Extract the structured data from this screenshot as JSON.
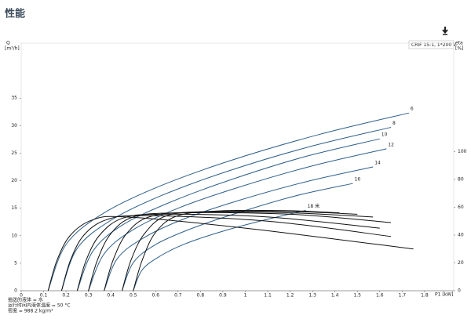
{
  "chart_data": {
    "type": "line",
    "title": "性能",
    "box_label": "CRIF 15-1, 1*200 V",
    "ylabel": [
      "Q",
      "[m³/h]"
    ],
    "y2label": [
      "eta",
      "[%]"
    ],
    "xlabel": "P1 [kW]",
    "notes": [
      "抽送的液体 = 水",
      "运行时间内液体温度 = 50 °C",
      "密度 = 988.2 kg/m³"
    ],
    "xlim": [
      0,
      1.93
    ],
    "xticks": [
      0,
      0.1,
      0.2,
      0.3,
      0.4,
      0.5,
      0.6,
      0.7,
      0.8,
      0.9,
      1,
      1.1,
      1.2,
      1.3,
      1.4,
      1.5,
      1.6,
      1.7,
      1.8
    ],
    "ylim": [
      0,
      45
    ],
    "yticks": [
      0,
      5,
      10,
      15,
      20,
      25,
      30,
      35
    ],
    "y2lim": [
      0,
      178
    ],
    "y2ticks": [
      0,
      20,
      40,
      60,
      80,
      100
    ],
    "series": [
      {
        "name": "6",
        "color": "#2e5f8a",
        "x": [
          0.12,
          0.2,
          0.36,
          0.6,
          0.93,
          1.33,
          1.73
        ],
        "values": [
          0,
          8.4,
          13.9,
          18.7,
          23.6,
          28.4,
          32.3
        ]
      },
      {
        "name": "8",
        "color": "#2e5f8a",
        "x": [
          0.18,
          0.25,
          0.4,
          0.62,
          0.92,
          1.28,
          1.65
        ],
        "values": [
          0,
          7.7,
          12.8,
          17.2,
          21.7,
          26.1,
          29.7
        ]
      },
      {
        "name": "10",
        "color": "#2e5f8a",
        "x": [
          0.25,
          0.32,
          0.45,
          0.66,
          0.93,
          1.26,
          1.6
        ],
        "values": [
          0,
          7.2,
          11.9,
          16.0,
          20.1,
          24.3,
          27.6
        ]
      },
      {
        "name": "12",
        "color": "#2e5f8a",
        "x": [
          0.3,
          0.37,
          0.5,
          0.7,
          0.97,
          1.3,
          1.63
        ],
        "values": [
          0,
          6.7,
          11.1,
          15.0,
          18.8,
          22.7,
          25.8
        ]
      },
      {
        "name": "14",
        "color": "#2e5f8a",
        "x": [
          0.37,
          0.43,
          0.55,
          0.73,
          0.97,
          1.27,
          1.57
        ],
        "values": [
          0,
          5.9,
          9.7,
          13.1,
          16.4,
          19.8,
          22.5
        ]
      },
      {
        "name": "16",
        "color": "#2e5f8a",
        "x": [
          0.45,
          0.5,
          0.6,
          0.76,
          0.97,
          1.22,
          1.48
        ],
        "values": [
          0,
          5.1,
          8.4,
          11.3,
          14.2,
          17.2,
          19.5
        ]
      },
      {
        "name": "18 米",
        "color": "#2e5f8a",
        "x": [
          0.5,
          0.54,
          0.62,
          0.73,
          0.89,
          1.08,
          1.27
        ],
        "values": [
          0,
          3.8,
          6.3,
          8.5,
          10.7,
          12.8,
          14.6
        ]
      },
      {
        "color": "#111111",
        "axis": "y2",
        "x": [
          0.12,
          0.16,
          0.22,
          0.32,
          0.47,
          1.0,
          1.75
        ],
        "values": [
          0,
          22,
          40,
          51,
          53,
          45,
          30
        ]
      },
      {
        "color": "#111111",
        "axis": "y2",
        "x": [
          0.18,
          0.22,
          0.28,
          0.38,
          0.55,
          1.1,
          1.65
        ],
        "values": [
          0,
          22,
          40,
          51,
          54,
          50,
          39
        ]
      },
      {
        "color": "#111111",
        "axis": "y2",
        "x": [
          0.25,
          0.29,
          0.35,
          0.45,
          0.62,
          1.1,
          1.6
        ],
        "values": [
          0,
          22,
          40,
          52,
          55,
          53,
          45
        ]
      },
      {
        "color": "#111111",
        "axis": "y2",
        "x": [
          0.3,
          0.34,
          0.4,
          0.5,
          0.7,
          1.2,
          1.65
        ],
        "values": [
          0,
          22,
          41,
          53,
          56,
          55,
          49
        ]
      },
      {
        "color": "#111111",
        "axis": "y2",
        "x": [
          0.37,
          0.41,
          0.47,
          0.57,
          0.77,
          1.2,
          1.57
        ],
        "values": [
          0,
          22,
          41,
          53,
          56.5,
          56,
          53
        ]
      },
      {
        "color": "#111111",
        "axis": "y2",
        "x": [
          0.45,
          0.49,
          0.55,
          0.65,
          0.85,
          1.2,
          1.5
        ],
        "values": [
          0,
          22,
          41,
          54,
          57,
          57,
          55
        ]
      },
      {
        "color": "#111111",
        "axis": "y2",
        "x": [
          0.5,
          0.54,
          0.6,
          0.7,
          0.9,
          1.2,
          1.42
        ],
        "values": [
          0,
          22,
          42,
          54,
          57.5,
          57.5,
          56
        ]
      }
    ]
  }
}
